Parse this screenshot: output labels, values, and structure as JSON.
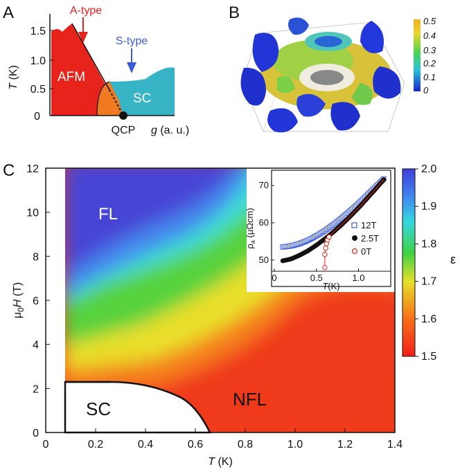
{
  "panels": {
    "A": {
      "label": "A",
      "type": "phase-diagram",
      "xlabel_g": "g",
      "xlabel_units": " (a. u.)",
      "ylabel_T": "T",
      "ylabel_units": " (K)",
      "yticks": [
        "0",
        "0.5",
        "1.0",
        "1.5"
      ],
      "regions": {
        "afm": "AFM",
        "sc": "SC"
      },
      "annotations": {
        "a_type": "A-type",
        "s_type": "S-type",
        "qcp": "QCP"
      },
      "colors": {
        "afm": "#e8231c",
        "sc": "#37b5c7",
        "overlap": "#f07a22",
        "a_type": "#e8231c",
        "s_type": "#3b5bdb"
      }
    },
    "B": {
      "label": "B",
      "type": "fermi-surface-render",
      "colorbar_ticks": [
        "0.5",
        "0.4",
        "0.3",
        "0.2",
        "0.1",
        "0"
      ]
    }
  },
  "chart_data": [
    {
      "panel": "C",
      "label": "C",
      "type": "heatmap",
      "xlabel_T": "T",
      "xlabel_units": " (K)",
      "ylabel_mu": "μ",
      "ylabel_sub": "0",
      "ylabel_H": "H",
      "ylabel_units": " (T)",
      "xlim": [
        0,
        1.4
      ],
      "ylim": [
        0,
        12
      ],
      "xticks": [
        "0",
        "0.2",
        "0.4",
        "0.6",
        "0.8",
        "1.0",
        "1.2",
        "1.4"
      ],
      "yticks": [
        "0",
        "2",
        "4",
        "6",
        "8",
        "10",
        "12"
      ],
      "regions": {
        "fl": "FL",
        "sc": "SC",
        "nfl": "NFL"
      },
      "colorbar": {
        "label": "ε",
        "range": [
          1.5,
          2.0
        ],
        "ticks": [
          "2.0",
          "1.9",
          "1.8",
          "1.7",
          "1.6",
          "1.5"
        ]
      },
      "sc_boundary": {
        "T": [
          0.08,
          0.2,
          0.3,
          0.4,
          0.5,
          0.58,
          0.63,
          0.67
        ],
        "H": [
          2.25,
          2.25,
          2.1,
          1.8,
          1.35,
          0.9,
          0.45,
          0.0
        ]
      },
      "fl_crossover": {
        "T": [
          0.08,
          0.2,
          0.35,
          0.5,
          0.65,
          0.8
        ],
        "H": [
          6.2,
          6.8,
          8.0,
          9.5,
          11.0,
          12.0
        ]
      }
    },
    {
      "panel": "C-inset",
      "type": "scatter",
      "xlabel_T": "T",
      "xlabel_units": "(K)",
      "ylabel_rho": "ρ",
      "ylabel_sub": "a",
      "ylabel_units": " (μΩcm)",
      "xlim": [
        0,
        1.35
      ],
      "ylim": [
        47,
        73
      ],
      "xticks": [
        "0",
        "0.5",
        "1.0"
      ],
      "yticks": [
        "50",
        "60",
        "70"
      ],
      "series": [
        {
          "name": "12T",
          "marker": "open-square",
          "color": "#3b5bdb",
          "x": [
            0.1,
            0.2,
            0.3,
            0.4,
            0.5,
            0.6,
            0.7,
            0.8,
            0.9,
            1.0,
            1.1,
            1.2,
            1.3
          ],
          "y": [
            53.5,
            53.8,
            54.4,
            55.3,
            56.5,
            57.9,
            59.5,
            61.3,
            63.2,
            65.2,
            67.4,
            69.6,
            71.8
          ]
        },
        {
          "name": "2.5T",
          "marker": "filled-circle",
          "color": "#111111",
          "x": [
            0.1,
            0.2,
            0.3,
            0.4,
            0.5,
            0.6,
            0.7,
            0.8,
            0.9,
            1.0,
            1.1,
            1.2,
            1.3
          ],
          "y": [
            49.8,
            50.3,
            51.3,
            52.5,
            54.0,
            55.7,
            57.5,
            59.5,
            61.7,
            64.0,
            66.5,
            69.0,
            71.6
          ]
        },
        {
          "name": "0T",
          "marker": "open-circle",
          "color": "#e8231c",
          "x": [
            0.6,
            0.6,
            0.61,
            0.62,
            0.63,
            0.65,
            0.7,
            0.8,
            0.9,
            1.0,
            1.1,
            1.2,
            1.3
          ],
          "y": [
            48.0,
            51.5,
            53.2,
            54.4,
            55.4,
            56.2,
            57.5,
            59.5,
            61.7,
            64.0,
            66.5,
            69.0,
            71.6
          ]
        }
      ]
    }
  ]
}
